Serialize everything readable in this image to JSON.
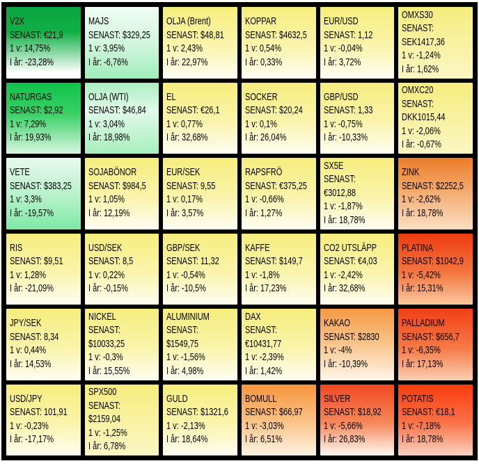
{
  "chart_data": {
    "type": "heatmap",
    "title": "",
    "rows": 6,
    "cols": 6,
    "legend_position": "none",
    "grid_line_color": "#000000",
    "labels": {
      "senast": "SENAST:",
      "week": "1 v:",
      "year": "I år:"
    },
    "cells": [
      {
        "name": "V2X",
        "senast": "€21,9",
        "week": "14,75%",
        "year": "-23,28%",
        "wrap": false,
        "bg": [
          "#0BA440 0%",
          "#10B046 35%",
          "#FFFFFF 92%"
        ]
      },
      {
        "name": "MAJS",
        "senast": "$329,25",
        "week": "3,95%",
        "year": "-6,76%",
        "wrap": false,
        "bg": [
          "#F0FCF4 0%",
          "#CFF5DC 55%",
          "#A0EDBA 100%"
        ]
      },
      {
        "name": "OLJA (Brent)",
        "senast": "$48,81",
        "week": "2,43%",
        "year": "22,97%",
        "wrap": false,
        "bg": [
          "#F6ED7E 0%",
          "#FAF4AC 55%",
          "#FEFDF2 100%"
        ]
      },
      {
        "name": "KOPPAR",
        "senast": "$4632,5",
        "week": "0,54%",
        "year": "0,33%",
        "wrap": false,
        "bg": [
          "#F6ED7E 0%",
          "#FAF4AC 55%",
          "#FEFDF2 100%"
        ]
      },
      {
        "name": "EUR/USD",
        "senast": "1,12",
        "week": "-0,04%",
        "year": "3,72%",
        "wrap": false,
        "bg": [
          "#F6ED7E 0%",
          "#FAF4AC 55%",
          "#FEFDF2 100%"
        ]
      },
      {
        "name": "OMXS30",
        "senast": "SEK1417,36",
        "week": "-1,24%",
        "year": "1,62%",
        "wrap": true,
        "bg": [
          "#F6ED7E 0%",
          "#F9F2A8 60%",
          "#FBF6C4 100%"
        ]
      },
      {
        "name": "NATURGAS",
        "senast": "$2,92",
        "week": "7,29%",
        "year": "19,93%",
        "wrap": false,
        "bg": [
          "#0FC24A 0%",
          "#3BD167 45%",
          "#D9F7E1 100%"
        ]
      },
      {
        "name": "OLJA (WTI)",
        "senast": "$46,84",
        "week": "3,04%",
        "year": "18,98%",
        "wrap": false,
        "bg": [
          "#ABEFC1 0%",
          "#E2F9EA 40%",
          "#A8EEBE 100%"
        ]
      },
      {
        "name": "EL",
        "senast": "€26,1",
        "week": "0,77%",
        "year": "32,68%",
        "wrap": false,
        "bg": [
          "#F6ED7E 0%",
          "#FAF4AC 55%",
          "#FEFDF2 100%"
        ]
      },
      {
        "name": "SOCKER",
        "senast": "$20,24",
        "week": "0,1%",
        "year": "26,04%",
        "wrap": false,
        "bg": [
          "#F6ED7E 0%",
          "#FAF4AC 55%",
          "#FEFDF2 100%"
        ]
      },
      {
        "name": "GBP/USD",
        "senast": "1,33",
        "week": "-0,75%",
        "year": "-10,33%",
        "wrap": false,
        "bg": [
          "#F6ED7E 0%",
          "#FAF4AC 55%",
          "#FEFDF2 100%"
        ]
      },
      {
        "name": "OMXC20",
        "senast": "DKK1015,44",
        "week": "-2,06%",
        "year": "-0,67%",
        "wrap": true,
        "bg": [
          "#F6ED7E 0%",
          "#F9F2A8 60%",
          "#FBF6C4 100%"
        ]
      },
      {
        "name": "VETE",
        "senast": "$383,25",
        "week": "3,3%",
        "year": "-19,57%",
        "wrap": false,
        "bg": [
          "#E8F9EF 0%",
          "#B5F1C9 55%",
          "#7EE9A6 100%"
        ]
      },
      {
        "name": "SOJABÖNOR",
        "senast": "$984,5",
        "week": "1,05%",
        "year": "12,19%",
        "wrap": false,
        "bg": [
          "#F6ED7E 0%",
          "#FAF4AC 55%",
          "#FEFDF2 100%"
        ]
      },
      {
        "name": "EUR/SEK",
        "senast": "9,55",
        "week": "0,17%",
        "year": "3,57%",
        "wrap": false,
        "bg": [
          "#F6ED7E 0%",
          "#FAF4AC 55%",
          "#FEFDF2 100%"
        ]
      },
      {
        "name": "RAPSFRÖ",
        "senast": "€375,25",
        "week": "-0,66%",
        "year": "1,27%",
        "wrap": false,
        "bg": [
          "#F6ED7E 0%",
          "#FAF4AC 55%",
          "#FEFDF2 100%"
        ]
      },
      {
        "name": "SX5E",
        "senast": "€3012,88",
        "week": "-1,87%",
        "year": "18,78%",
        "wrap": true,
        "bg": [
          "#F6ED7E 0%",
          "#FAF4AC 55%",
          "#FEFDF2 100%"
        ]
      },
      {
        "name": "ZINK",
        "senast": "$2252,5",
        "week": "-2,62%",
        "year": "18,78%",
        "wrap": false,
        "bg": [
          "#EC7C2A 0%",
          "#F4AE74 50%",
          "#FBDEC3 100%"
        ]
      },
      {
        "name": "RIS",
        "senast": "$9,51",
        "week": "1,28%",
        "year": "-21,09%",
        "wrap": false,
        "bg": [
          "#F6ED7E 0%",
          "#FAF4AC 55%",
          "#FEFDF2 100%"
        ]
      },
      {
        "name": "USD/SEK",
        "senast": "8,5",
        "week": "0,22%",
        "year": "-0,15%",
        "wrap": false,
        "bg": [
          "#F6ED7E 0%",
          "#FAF4AC 55%",
          "#FEFDF2 100%"
        ]
      },
      {
        "name": "GBP/SEK",
        "senast": "11,32",
        "week": "-0,54%",
        "year": "-10,5%",
        "wrap": false,
        "bg": [
          "#F6ED7E 0%",
          "#FAF4AC 55%",
          "#FEFDF2 100%"
        ]
      },
      {
        "name": "KAFFE",
        "senast": "$149,7",
        "week": "-1,8%",
        "year": "17,23%",
        "wrap": false,
        "bg": [
          "#F6ED7E 0%",
          "#FAF4AC 55%",
          "#FEFDF2 100%"
        ]
      },
      {
        "name": "CO2 UTSLÄPP",
        "senast": "€4,03",
        "week": "-2,42%",
        "year": "32,68%",
        "wrap": false,
        "bg": [
          "#F6ED7E 0%",
          "#FAF4AC 55%",
          "#FEFDF2 100%"
        ]
      },
      {
        "name": "PLATINA",
        "senast": "$1042,9",
        "week": "-5,42%",
        "year": "15,31%",
        "wrap": false,
        "bg": [
          "#EE3B12 0%",
          "#F4763F 55%",
          "#F9C89F 100%"
        ]
      },
      {
        "name": "JPY/SEK",
        "senast": "8,34",
        "week": "0,44%",
        "year": "14,53%",
        "wrap": false,
        "bg": [
          "#F6ED7E 0%",
          "#FAF4AC 55%",
          "#FEFDF2 100%"
        ]
      },
      {
        "name": "NICKEL",
        "senast": "$10033,25",
        "week": "-0,3%",
        "year": "15,55%",
        "wrap": true,
        "bg": [
          "#F6ED7E 0%",
          "#FAF4AC 55%",
          "#FEFDF2 100%"
        ]
      },
      {
        "name": "ALUMINIUM",
        "senast": "$1549,75",
        "week": "-1,56%",
        "year": "4,98%",
        "wrap": true,
        "bg": [
          "#F6ED7E 0%",
          "#FAF4AC 55%",
          "#FEFDF2 100%"
        ]
      },
      {
        "name": "DAX",
        "senast": "€10431,77",
        "week": "-2,39%",
        "year": "1,42%",
        "wrap": true,
        "bg": [
          "#F6ED7E 0%",
          "#FAF4AC 55%",
          "#FEFDF2 100%"
        ]
      },
      {
        "name": "KAKAO",
        "senast": "$2830",
        "week": "-4%",
        "year": "-10,39%",
        "wrap": false,
        "bg": [
          "#F59A44 0%",
          "#FAC68D 50%",
          "#FEF5E9 100%"
        ]
      },
      {
        "name": "PALLADIUM",
        "senast": "$656,7",
        "week": "-6,35%",
        "year": "17,13%",
        "wrap": false,
        "bg": [
          "#F23F16 0%",
          "#F67A45 55%",
          "#FACEB5 100%"
        ]
      },
      {
        "name": "USD/JPY",
        "senast": "101,91",
        "week": "-0,23%",
        "year": "-17,17%",
        "wrap": false,
        "bg": [
          "#F6ED7E 0%",
          "#FAF4AC 55%",
          "#FEFDF2 100%"
        ]
      },
      {
        "name": "SPX500",
        "senast": "$2159,04",
        "week": "-1,25%",
        "year": "6,78%",
        "wrap": true,
        "bg": [
          "#F6ED7E 0%",
          "#F9F2A8 60%",
          "#FBF6C4 100%"
        ]
      },
      {
        "name": "GULD",
        "senast": "$1321,6",
        "week": "-2,13%",
        "year": "18,64%",
        "wrap": false,
        "bg": [
          "#F6ED7E 0%",
          "#FAF4AC 55%",
          "#FEFDF2 100%"
        ]
      },
      {
        "name": "BOMULL",
        "senast": "$66,97",
        "week": "-3,03%",
        "year": "6,51%",
        "wrap": false,
        "bg": [
          "#F6953D 0%",
          "#FAC183 50%",
          "#FEF3E3 100%"
        ]
      },
      {
        "name": "SILVER",
        "senast": "$18,92",
        "week": "-5,66%",
        "year": "26,83%",
        "wrap": false,
        "bg": [
          "#F24722 0%",
          "#F68A5C 55%",
          "#FEF8F4 100%"
        ]
      },
      {
        "name": "POTATIS",
        "senast": "€18,1",
        "week": "-7,18%",
        "year": "18,78%",
        "wrap": false,
        "bg": [
          "#F93A0D 0%",
          "#FA7448 55%",
          "#FBD2C2 100%"
        ]
      }
    ]
  }
}
